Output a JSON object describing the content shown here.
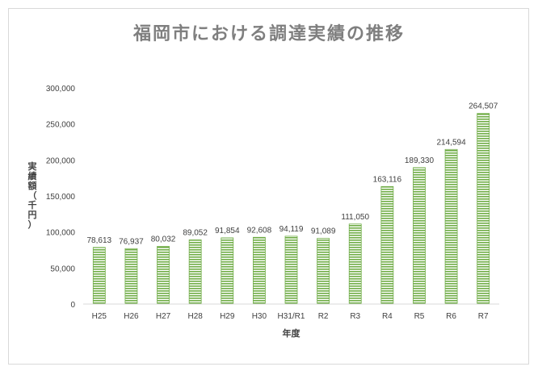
{
  "chart_data": {
    "type": "bar",
    "title": "福岡市における調達実績の推移",
    "xlabel": "年度",
    "ylabel": "実績額（千円）",
    "categories": [
      "H25",
      "H26",
      "H27",
      "H28",
      "H29",
      "H30",
      "H31/R1",
      "R2",
      "R3",
      "R4",
      "R5",
      "R6",
      "R7"
    ],
    "values": [
      78613,
      76937,
      80032,
      89052,
      91854,
      92608,
      94119,
      91089,
      111050,
      163116,
      189330,
      214594,
      264507
    ],
    "data_labels": [
      "78,613",
      "76,937",
      "80,032",
      "89,052",
      "91,854",
      "92,608",
      "94,119",
      "91,089",
      "111,050",
      "163,116",
      "189,330",
      "214,594",
      "264,507"
    ],
    "y_ticks": [
      "0",
      "50,000",
      "100,000",
      "150,000",
      "200,000",
      "250,000",
      "300,000"
    ],
    "ylim": [
      0,
      300000
    ],
    "grid": false,
    "legend": "none",
    "bar_color": "#70ad47"
  }
}
